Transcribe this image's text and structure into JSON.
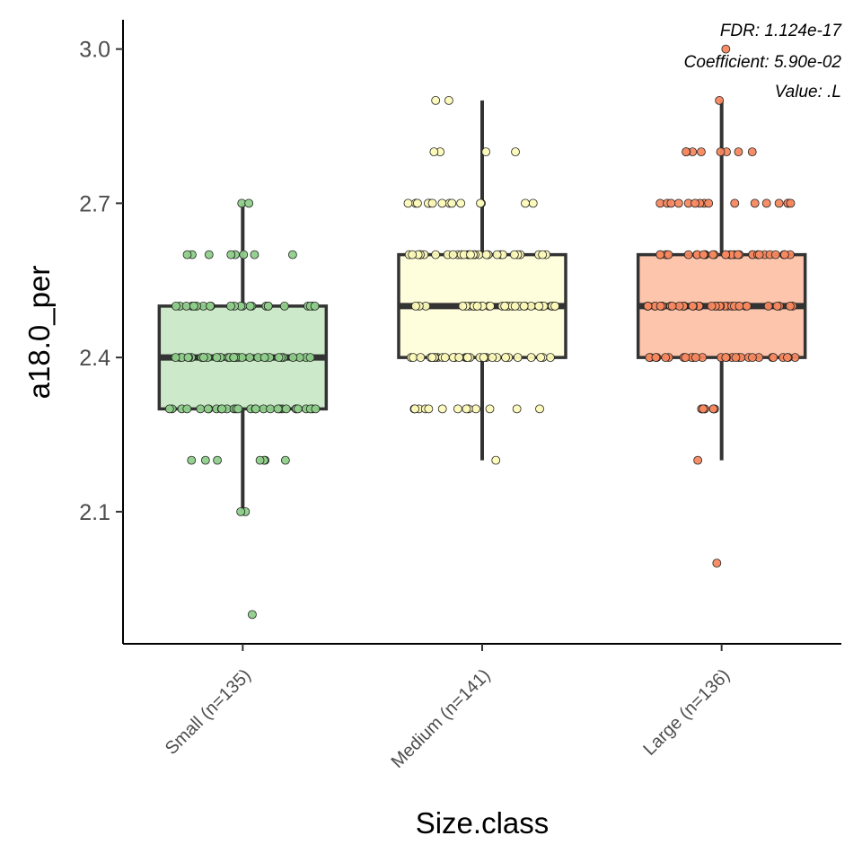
{
  "chart_data": {
    "type": "box",
    "xlabel": "Size.class",
    "ylabel": "a18.0_per",
    "ylim": [
      1.843,
      3.057
    ],
    "yticks": [
      2.1,
      2.4,
      2.7,
      3.0
    ],
    "ytick_labels": [
      "2.1",
      "2.4",
      "2.7",
      "3.0"
    ],
    "grid": false,
    "legend": "none",
    "annotations": [
      "FDR: 1.124e-17",
      "Coefficient: 5.90e-02",
      "Value: .L"
    ],
    "categories": [
      "Small (n=135)",
      "Medium (n=141)",
      "Large (n=136)"
    ],
    "boxes": [
      {
        "category": "Small (n=135)",
        "fill": "#cce9c9",
        "point_color": "#8fcf8a",
        "q1": 2.3,
        "median": 2.4,
        "q3": 2.5,
        "whisker_low": 2.1,
        "whisker_high": 2.7,
        "points": [
          {
            "y": 2.7,
            "n": 2,
            "spread": 0.42
          },
          {
            "y": 2.6,
            "n": 8,
            "spread": 0.55
          },
          {
            "y": 2.5,
            "n": 24,
            "spread": 0.62
          },
          {
            "y": 2.4,
            "n": 38,
            "spread": 0.62
          },
          {
            "y": 2.3,
            "n": 30,
            "spread": 0.62
          },
          {
            "y": 2.2,
            "n": 7,
            "spread": 0.45
          },
          {
            "y": 2.1,
            "n": 2,
            "spread": 0.03
          },
          {
            "y": 1.9,
            "n": 1,
            "spread": 0.12
          }
        ]
      },
      {
        "category": "Medium (n=141)",
        "fill": "#fffedc",
        "point_color": "#fdfab9",
        "q1": 2.4,
        "median": 2.5,
        "q3": 2.6,
        "whisker_low": 2.2,
        "whisker_high": 2.9,
        "points": [
          {
            "y": 2.9,
            "n": 2,
            "spread": 0.42
          },
          {
            "y": 2.8,
            "n": 4,
            "spread": 0.42
          },
          {
            "y": 2.7,
            "n": 14,
            "spread": 0.62
          },
          {
            "y": 2.6,
            "n": 30,
            "spread": 0.62
          },
          {
            "y": 2.5,
            "n": 34,
            "spread": 0.62
          },
          {
            "y": 2.4,
            "n": 32,
            "spread": 0.62
          },
          {
            "y": 2.3,
            "n": 13,
            "spread": 0.6
          },
          {
            "y": 2.2,
            "n": 1,
            "spread": 0.25
          }
        ]
      },
      {
        "category": "Large (n=136)",
        "fill": "#fdc5ab",
        "point_color": "#f7885f",
        "q1": 2.4,
        "median": 2.5,
        "q3": 2.6,
        "whisker_low": 2.2,
        "whisker_high": 2.9,
        "points": [
          {
            "y": 3.0,
            "n": 1,
            "spread": 0.05
          },
          {
            "y": 2.9,
            "n": 1,
            "spread": 0.02
          },
          {
            "y": 2.8,
            "n": 8,
            "spread": 0.55
          },
          {
            "y": 2.7,
            "n": 16,
            "spread": 0.62
          },
          {
            "y": 2.6,
            "n": 32,
            "spread": 0.62
          },
          {
            "y": 2.5,
            "n": 38,
            "spread": 0.62
          },
          {
            "y": 2.4,
            "n": 28,
            "spread": 0.62
          },
          {
            "y": 2.3,
            "n": 8,
            "spread": 0.2
          },
          {
            "y": 2.2,
            "n": 1,
            "spread": 0.25
          },
          {
            "y": 2.0,
            "n": 1,
            "spread": 0.23
          }
        ]
      }
    ]
  }
}
